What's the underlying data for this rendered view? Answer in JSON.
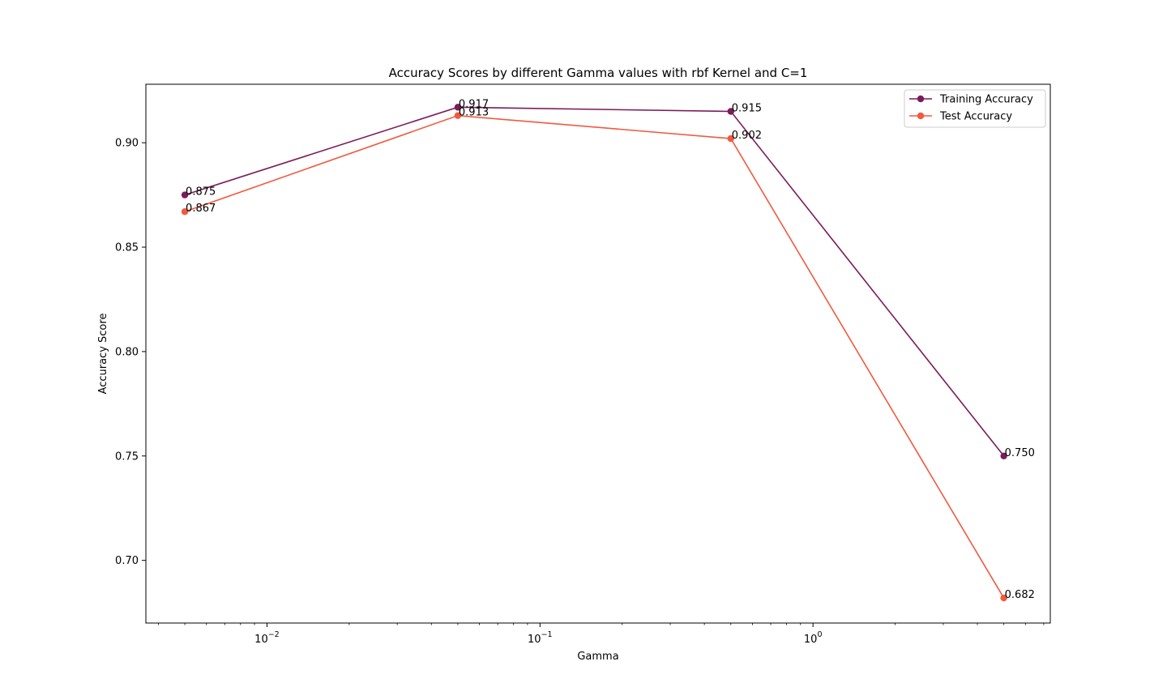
{
  "chart_data": {
    "type": "line",
    "title": "Accuracy Scores by different Gamma values with rbf Kernel and C=1",
    "xlabel": "Gamma",
    "ylabel": "Accuracy Score",
    "xscale": "log",
    "xlim": [
      0.0036,
      7.4
    ],
    "ylim": [
      0.67,
      0.928
    ],
    "grid": false,
    "legend_position": "top-right",
    "x": [
      0.005,
      0.05,
      0.5,
      5
    ],
    "x_ticks": [
      {
        "value": 0.01,
        "base": "10",
        "exp": "−2"
      },
      {
        "value": 0.1,
        "base": "10",
        "exp": "−1"
      },
      {
        "value": 1,
        "base": "10",
        "exp": "0"
      }
    ],
    "y_ticks": [
      {
        "value": 0.7,
        "label": "0.70"
      },
      {
        "value": 0.75,
        "label": "0.75"
      },
      {
        "value": 0.8,
        "label": "0.80"
      },
      {
        "value": 0.85,
        "label": "0.85"
      },
      {
        "value": 0.9,
        "label": "0.90"
      }
    ],
    "series": [
      {
        "name": "Training Accuracy",
        "color": "#7b1c5a",
        "values": [
          0.875,
          0.917,
          0.915,
          0.75
        ],
        "labels": [
          "0.875",
          "0.917",
          "0.915",
          "0.750"
        ]
      },
      {
        "name": "Test Accuracy",
        "color": "#f05a3f",
        "values": [
          0.867,
          0.913,
          0.902,
          0.682
        ],
        "labels": [
          "0.867",
          "0.913",
          "0.902",
          "0.682"
        ]
      }
    ]
  }
}
